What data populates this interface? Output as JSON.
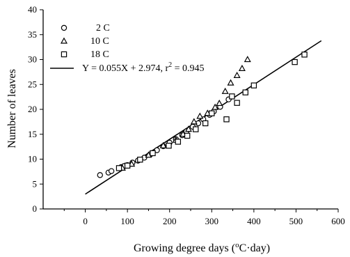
{
  "chart_data": {
    "type": "scatter",
    "xlabel_main": "Growing degree days (",
    "xlabel_sup": "o",
    "xlabel_unit": "C·day)",
    "ylabel": "Number of leaves",
    "xlim": [
      -100,
      600
    ],
    "ylim": [
      0,
      40
    ],
    "x_ticks": [
      0,
      100,
      200,
      300,
      400,
      500,
      600
    ],
    "y_ticks": [
      0,
      5,
      10,
      15,
      20,
      25,
      30,
      35,
      40
    ],
    "legend_position": "top-left",
    "series": [
      {
        "name": "2 C",
        "marker": "circle",
        "points": [
          [
            35,
            6.8
          ],
          [
            55,
            7.3
          ],
          [
            62,
            7.6
          ],
          [
            85,
            8.4
          ],
          [
            92,
            8.6
          ],
          [
            100,
            8.8
          ],
          [
            112,
            9.3
          ],
          [
            125,
            9.7
          ],
          [
            140,
            10.3
          ],
          [
            155,
            11.0
          ],
          [
            170,
            11.8
          ],
          [
            185,
            12.6
          ],
          [
            200,
            13.3
          ],
          [
            215,
            14.0
          ],
          [
            230,
            14.8
          ],
          [
            240,
            15.6
          ],
          [
            255,
            16.5
          ],
          [
            268,
            17.2
          ],
          [
            280,
            18.0
          ],
          [
            295,
            18.9
          ],
          [
            305,
            19.6
          ],
          [
            320,
            20.5
          ],
          [
            340,
            22.0
          ]
        ]
      },
      {
        "name": "10 C",
        "marker": "triangle",
        "points": [
          [
            88,
            8.2
          ],
          [
            110,
            9.0
          ],
          [
            150,
            10.8
          ],
          [
            185,
            12.7
          ],
          [
            215,
            13.8
          ],
          [
            232,
            15.0
          ],
          [
            245,
            16.0
          ],
          [
            258,
            17.5
          ],
          [
            272,
            18.6
          ],
          [
            290,
            19.2
          ],
          [
            308,
            20.4
          ],
          [
            318,
            21.2
          ],
          [
            332,
            23.6
          ],
          [
            345,
            25.3
          ],
          [
            360,
            26.8
          ],
          [
            372,
            28.2
          ],
          [
            385,
            30.0
          ]
        ]
      },
      {
        "name": "18 C",
        "marker": "square",
        "points": [
          [
            80,
            8.2
          ],
          [
            100,
            8.7
          ],
          [
            130,
            9.9
          ],
          [
            160,
            11.2
          ],
          [
            198,
            12.7
          ],
          [
            220,
            13.5
          ],
          [
            242,
            14.7
          ],
          [
            262,
            16.0
          ],
          [
            285,
            17.2
          ],
          [
            300,
            19.2
          ],
          [
            335,
            18.0
          ],
          [
            348,
            22.6
          ],
          [
            360,
            21.3
          ],
          [
            380,
            23.4
          ],
          [
            400,
            24.8
          ],
          [
            497,
            29.5
          ],
          [
            520,
            31.0
          ]
        ]
      }
    ],
    "regression": {
      "label": "Y = 0.055X + 2.974, r",
      "label_sup": "2",
      "label_tail": " = 0.945",
      "x": [
        0,
        560
      ],
      "y": [
        2.974,
        33.774
      ]
    }
  }
}
